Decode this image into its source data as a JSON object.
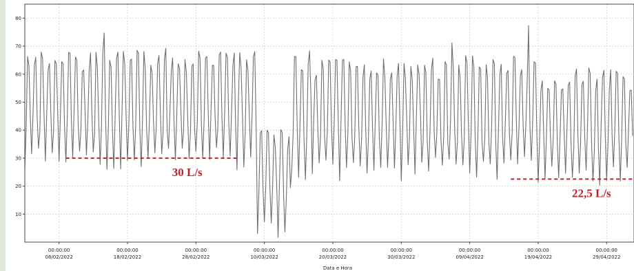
{
  "chart_data": {
    "type": "line",
    "title": "",
    "xlabel": "Data e Hora",
    "ylabel": "",
    "ylim": [
      0,
      85
    ],
    "xlim": [
      "2022-02-03",
      "2022-05-03"
    ],
    "y_ticks": [
      10,
      20,
      30,
      40,
      50,
      60,
      70,
      80
    ],
    "x_ticks": [
      {
        "time": "00:00:00",
        "date": "08/02/2022"
      },
      {
        "time": "00:00:00",
        "date": "18/02/2022"
      },
      {
        "time": "00:00:00",
        "date": "28/02/2022"
      },
      {
        "time": "00:00:00",
        "date": "10/03/2022"
      },
      {
        "time": "00:00:00",
        "date": "20/03/2022"
      },
      {
        "time": "00:00:00",
        "date": "30/03/2022"
      },
      {
        "time": "00:00:00",
        "date": "09/04/2022"
      },
      {
        "time": "00:00:00",
        "date": "19/04/2022"
      },
      {
        "time": "00:00:00",
        "date": "29/04/2022"
      }
    ],
    "grid": true,
    "series_color": "#6e6e6e",
    "annotation_color": "#c0202a",
    "daily_envelope": [
      {
        "start": "2022-02-03",
        "end": "2022-03-09",
        "min": 30,
        "max": 68
      },
      {
        "start": "2022-03-09",
        "end": "2022-03-14",
        "min": 5,
        "max": 40
      },
      {
        "start": "2022-03-14",
        "end": "2022-04-19",
        "min": 26,
        "max": 66
      },
      {
        "start": "2022-04-19",
        "end": "2022-05-03",
        "min": 23,
        "max": 62
      }
    ],
    "annotations": [
      {
        "text": "30 L/s",
        "value": 30,
        "x_start": "2022-02-09",
        "x_end": "2022-03-06"
      },
      {
        "text": "22,5 L/s",
        "value": 22.5,
        "x_start": "2022-04-15",
        "x_end": "2022-05-03"
      }
    ]
  }
}
